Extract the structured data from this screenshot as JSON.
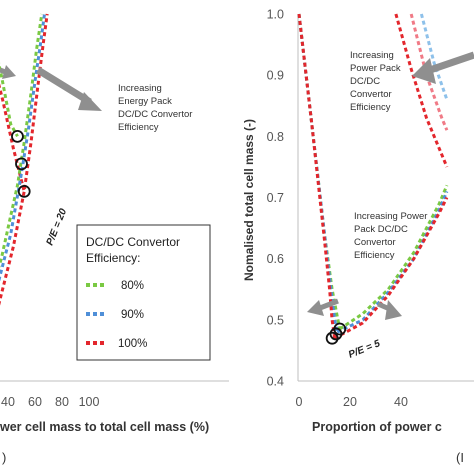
{
  "colors": {
    "green": "#7ac943",
    "blue": "#4f8fd8",
    "red": "#e3262c",
    "pink": "#f07a86",
    "lightblue": "#8ec1ea",
    "arrow": "#8f8f8f",
    "axis": "#bfbfbf"
  },
  "chart_data": [
    {
      "type": "line",
      "xlabel": "wer cell mass to total cell mass (%)",
      "ylabel": "",
      "xticks": [
        "40",
        "60",
        "80",
        "100"
      ],
      "xlim": [
        28,
        100
      ],
      "ylim": [
        0.4,
        1.0
      ],
      "series": [
        {
          "name": "80%",
          "color": "#7ac943",
          "x": [
            28,
            35,
            42,
            47,
            52,
            57,
            61,
            65
          ],
          "y": [
            0.55,
            0.6,
            0.67,
            0.72,
            0.79,
            0.87,
            0.94,
            1.0
          ]
        },
        {
          "name": "90%",
          "color": "#4f8fd8",
          "x": [
            28,
            35,
            42,
            50,
            55,
            60,
            64,
            67
          ],
          "y": [
            0.52,
            0.58,
            0.64,
            0.74,
            0.81,
            0.89,
            0.95,
            1.0
          ]
        },
        {
          "name": "100%",
          "color": "#e3262c",
          "x": [
            28,
            36,
            44,
            52,
            57,
            62,
            66,
            69
          ],
          "y": [
            0.48,
            0.55,
            0.62,
            0.71,
            0.79,
            0.88,
            0.95,
            1.0
          ]
        }
      ],
      "falling_lines": [
        {
          "color": "#7ac943",
          "x": [
            28,
            35,
            42,
            47
          ],
          "y": [
            0.97,
            0.9,
            0.82,
            0.8
          ]
        },
        {
          "color": "#e3262c",
          "x": [
            28,
            36,
            44,
            52
          ],
          "y": [
            0.93,
            0.86,
            0.78,
            0.71
          ]
        }
      ],
      "markers": [
        {
          "x": 47,
          "y": 0.8
        },
        {
          "x": 50,
          "y": 0.755
        },
        {
          "x": 52,
          "y": 0.71
        }
      ],
      "annotations": [
        {
          "text": "Increasing Energy Pack DC/DC Convertor Efficiency"
        },
        {
          "text": "P/E = 20"
        }
      ],
      "legend": {
        "title": "DC/DC Convertor Efficiency:",
        "entries": [
          "80%",
          "90%",
          "100%"
        ],
        "placement": "bottom-right"
      },
      "panel_label": ")"
    },
    {
      "type": "line",
      "xlabel": "Proportion of power c",
      "ylabel": "Nomalised total cell mass (-)",
      "xticks": [
        "0",
        "20",
        "40"
      ],
      "yticks": [
        "0.4",
        "0.5",
        "0.6",
        "0.7",
        "0.8",
        "0.9",
        "1.0"
      ],
      "xlim": [
        0,
        58
      ],
      "ylim": [
        0.4,
        1.0
      ],
      "left_branches": [
        {
          "color": "#7ac943",
          "x": [
            0,
            5,
            10,
            13,
            15,
            16
          ],
          "y": [
            1.0,
            0.82,
            0.64,
            0.55,
            0.505,
            0.485
          ]
        },
        {
          "color": "#4f8fd8",
          "x": [
            0,
            5,
            10,
            12.5,
            14,
            15
          ],
          "y": [
            1.0,
            0.82,
            0.64,
            0.55,
            0.5,
            0.48
          ]
        },
        {
          "color": "#e3262c",
          "x": [
            0,
            5,
            10,
            12,
            13,
            14
          ],
          "y": [
            1.0,
            0.82,
            0.63,
            0.55,
            0.5,
            0.47
          ]
        }
      ],
      "right_branches": [
        {
          "color": "#7ac943",
          "x": [
            16,
            25,
            35,
            45,
            55,
            58
          ],
          "y": [
            0.485,
            0.51,
            0.55,
            0.61,
            0.69,
            0.72
          ]
        },
        {
          "color": "#4f8fd8",
          "x": [
            15,
            25,
            35,
            45,
            55,
            58
          ],
          "y": [
            0.48,
            0.5,
            0.545,
            0.6,
            0.68,
            0.71
          ]
        },
        {
          "color": "#e3262c",
          "x": [
            14,
            25,
            35,
            45,
            55,
            58
          ],
          "y": [
            0.47,
            0.495,
            0.54,
            0.6,
            0.675,
            0.7
          ]
        }
      ],
      "upper_branches": [
        {
          "color": "#e3262c",
          "x": [
            38,
            44,
            50,
            56,
            58
          ],
          "y": [
            1.0,
            0.91,
            0.83,
            0.77,
            0.75
          ]
        },
        {
          "color": "#f07a86",
          "x": [
            44,
            50,
            56,
            58
          ],
          "y": [
            1.0,
            0.9,
            0.83,
            0.81
          ]
        },
        {
          "color": "#8ec1ea",
          "x": [
            48,
            53,
            58
          ],
          "y": [
            1.0,
            0.92,
            0.86
          ]
        }
      ],
      "markers": [
        {
          "x": 13,
          "y": 0.47
        },
        {
          "x": 14.5,
          "y": 0.477
        },
        {
          "x": 16,
          "y": 0.485
        }
      ],
      "annotations": [
        {
          "text": "Increasing Power Pack DC/DC Convertor Efficiency"
        },
        {
          "text": "Increasing Power Pack DC/DC Convertor Efficiency"
        },
        {
          "text": "P/E = 5"
        }
      ],
      "panel_label": "(I"
    }
  ]
}
